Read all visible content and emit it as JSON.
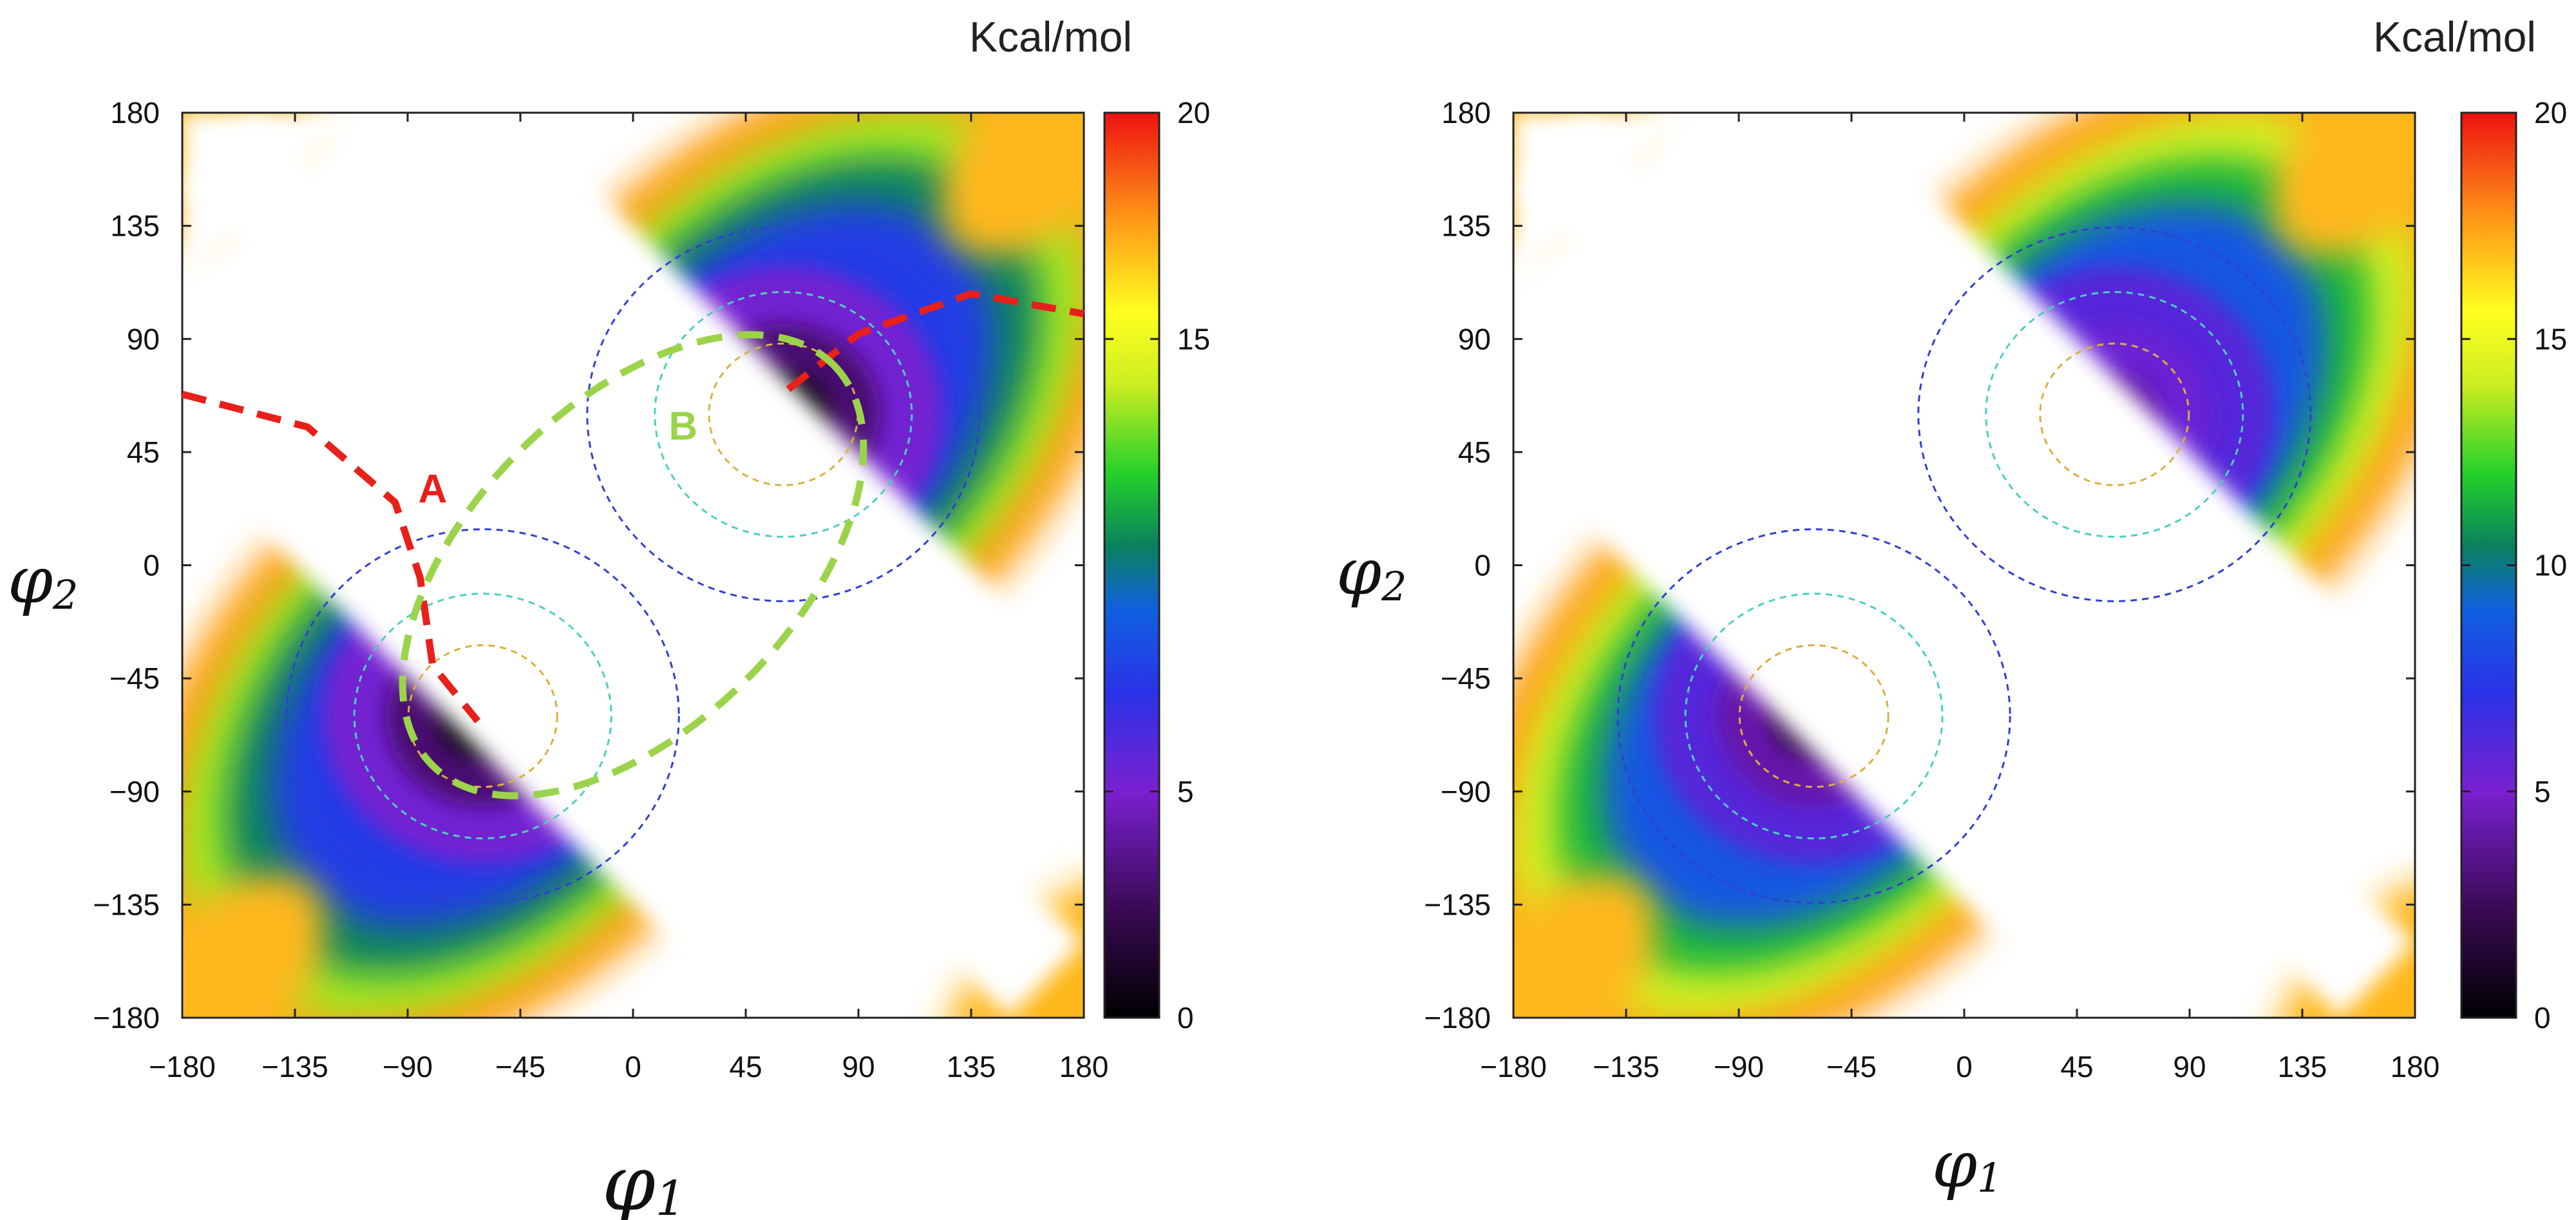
{
  "chart_data": [
    {
      "type": "heatmap",
      "panel": "left",
      "title": "",
      "xlabel_base": "φ",
      "xlabel_sub": "1",
      "ylabel_base": "φ",
      "ylabel_sub": "2",
      "xlim": [
        -180,
        180
      ],
      "ylim": [
        -180,
        180
      ],
      "xticks": [
        -180,
        -135,
        -90,
        -45,
        0,
        45,
        90,
        135,
        180
      ],
      "yticks": [
        -180,
        -135,
        -90,
        -45,
        0,
        45,
        90,
        135,
        180
      ],
      "colorbar": {
        "label": "Kcal/mol",
        "range": [
          0,
          20
        ],
        "ticks": [
          0,
          5,
          15,
          20
        ]
      },
      "minima": [
        {
          "phi1": -60,
          "phi2": -60,
          "energy": 0
        },
        {
          "phi1": 60,
          "phi2": 60,
          "energy": 0
        }
      ],
      "annotations": [
        {
          "text": "A",
          "phi1": -80,
          "phi2": 25,
          "color": "#e8201a"
        },
        {
          "text": "B",
          "phi1": 20,
          "phi2": 50,
          "color": "#9bd44a"
        }
      ]
    },
    {
      "type": "heatmap",
      "panel": "right",
      "title": "",
      "xlabel_base": "φ",
      "xlabel_sub": "1",
      "ylabel_base": "φ",
      "ylabel_sub": "2",
      "xlim": [
        -180,
        180
      ],
      "ylim": [
        -180,
        180
      ],
      "xticks": [
        -180,
        -135,
        -90,
        -45,
        0,
        45,
        90,
        135,
        180
      ],
      "yticks": [
        -180,
        -135,
        -90,
        -45,
        0,
        45,
        90,
        135,
        180
      ],
      "colorbar": {
        "label": "Kcal/mol",
        "range": [
          0,
          20
        ],
        "ticks": [
          0,
          5,
          10,
          15,
          20
        ]
      },
      "minima": [
        {
          "phi1": -60,
          "phi2": -60,
          "energy": 2
        },
        {
          "phi1": 60,
          "phi2": 60,
          "energy": 4
        }
      ],
      "annotations": []
    }
  ],
  "colors": {
    "red_path": "#e8201a",
    "green_path": "#9bd44a"
  }
}
